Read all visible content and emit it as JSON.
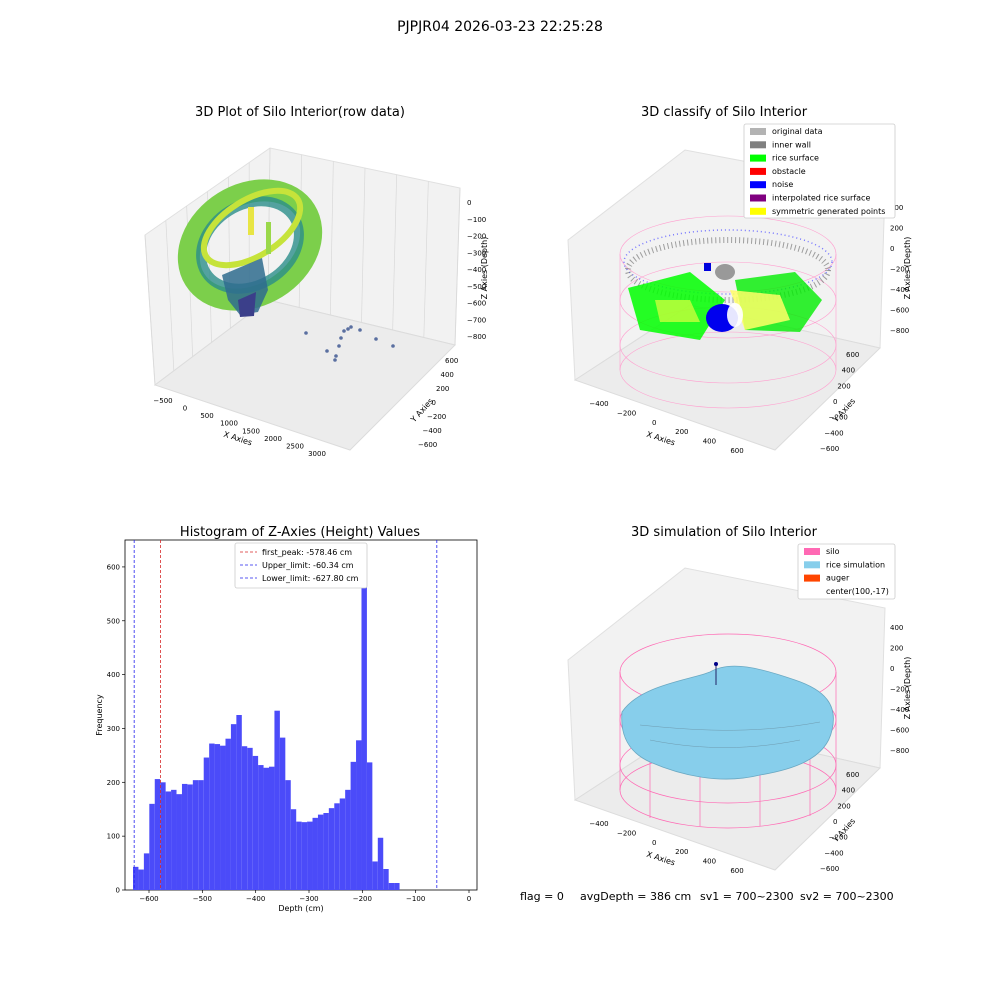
{
  "figure": {
    "suptitle": "PJPJR04 2026-03-23 22:25:28",
    "footer": {
      "flag": "flag = 0",
      "avg_depth": "avgDepth = 386 cm",
      "sv1": "sv1 = 700~2300",
      "sv2": "sv2 = 700~2300"
    }
  },
  "colors": {
    "hist_bar": "#4b4bf9",
    "first_peak_line": "#d62728",
    "limit_line": "#2222ee",
    "pane_fill": "#f2f2f2",
    "grid": "#d8d8d8",
    "silo_wire": "#ff69b4",
    "rice_sim": "#87ceeb",
    "auger": "#ff4500",
    "rice_surface": "#00ff00",
    "noise": "#0000ff",
    "original": "#b3b3b3",
    "inner_wall": "#808080",
    "obstacle": "#ff0000",
    "interpolated": "#800080",
    "symmetric": "#ffff00"
  },
  "panels": {
    "raw": {
      "title": "3D Plot of Silo Interior(row data)",
      "xlabel": "X Axies",
      "ylabel": "Y Axies",
      "zlabel": "Z Axies (Depth)",
      "xticks": [
        "−500",
        "0",
        "500",
        "1000",
        "1500",
        "2000",
        "2500",
        "3000"
      ],
      "yticks": [
        "600",
        "400",
        "200",
        "0",
        "−200",
        "−400",
        "−600"
      ],
      "zticks": [
        "0",
        "−100",
        "−200",
        "−300",
        "−400",
        "−500",
        "−600",
        "−700",
        "−800"
      ]
    },
    "classify": {
      "title": "3D classify of Silo Interior",
      "xlabel": "X Axies",
      "ylabel": "Y Axies",
      "zlabel": "Z Axies (Depth)",
      "xticks": [
        "−400",
        "−200",
        "0",
        "200",
        "400",
        "600"
      ],
      "yticks": [
        "600",
        "400",
        "200",
        "0",
        "−200",
        "−400",
        "−600"
      ],
      "zticks": [
        "400",
        "200",
        "0",
        "−200",
        "−400",
        "−600",
        "−800"
      ],
      "legend": [
        {
          "label": "original data",
          "color": "#b3b3b3"
        },
        {
          "label": "inner wall",
          "color": "#808080"
        },
        {
          "label": "rice surface",
          "color": "#00ff00"
        },
        {
          "label": "obstacle",
          "color": "#ff0000"
        },
        {
          "label": "noise",
          "color": "#0000ff"
        },
        {
          "label": "interpolated rice surface",
          "color": "#800080"
        },
        {
          "label": "symmetric generated points",
          "color": "#ffff00"
        }
      ]
    },
    "simulation": {
      "title": "3D simulation of Silo Interior",
      "xlabel": "X Axies",
      "ylabel": "Y Axies",
      "zlabel": "Z Axies (Depth)",
      "xticks": [
        "−400",
        "−200",
        "0",
        "200",
        "400",
        "600"
      ],
      "yticks": [
        "600",
        "400",
        "200",
        "0",
        "−200",
        "−400",
        "−600"
      ],
      "zticks": [
        "400",
        "200",
        "0",
        "−200",
        "−400",
        "−600",
        "−800"
      ],
      "legend": [
        {
          "label": "silo",
          "color": "#ff69b4"
        },
        {
          "label": "rice simulation",
          "color": "#87ceeb"
        },
        {
          "label": "auger",
          "color": "#ff4500"
        },
        {
          "label": "center(100,-17)",
          "color": ""
        }
      ]
    }
  },
  "chart_data": [
    {
      "type": "bar",
      "title": "Histogram of Z-Axies (Height) Values",
      "xlabel": "Depth (cm)",
      "ylabel": "Frequency",
      "xlim": [
        -645,
        15
      ],
      "ylim": [
        0,
        650
      ],
      "xticks": [
        -600,
        -500,
        -400,
        -300,
        -200,
        -100,
        0
      ],
      "yticks": [
        0,
        100,
        200,
        300,
        400,
        500,
        600
      ],
      "bin_start": -630,
      "bin_width": 10.2,
      "values": [
        43,
        38,
        68,
        160,
        206,
        200,
        183,
        186,
        178,
        197,
        196,
        204,
        204,
        246,
        272,
        271,
        268,
        281,
        308,
        325,
        267,
        264,
        249,
        232,
        227,
        229,
        333,
        283,
        204,
        150,
        127,
        126,
        127,
        134,
        140,
        143,
        152,
        161,
        170,
        186,
        238,
        278,
        621,
        237,
        53,
        97,
        39,
        13,
        13
      ],
      "vlines": [
        {
          "label": "first_peak: -578.46 cm",
          "x": -578.46,
          "color": "#d62728"
        },
        {
          "label": "Upper_limit: -60.34 cm",
          "x": -60.34,
          "color": "#2222ee"
        },
        {
          "label": "Lower_limit: -627.80 cm",
          "x": -627.8,
          "color": "#2222ee"
        }
      ],
      "grid": false,
      "legend_position": "top-center"
    }
  ]
}
